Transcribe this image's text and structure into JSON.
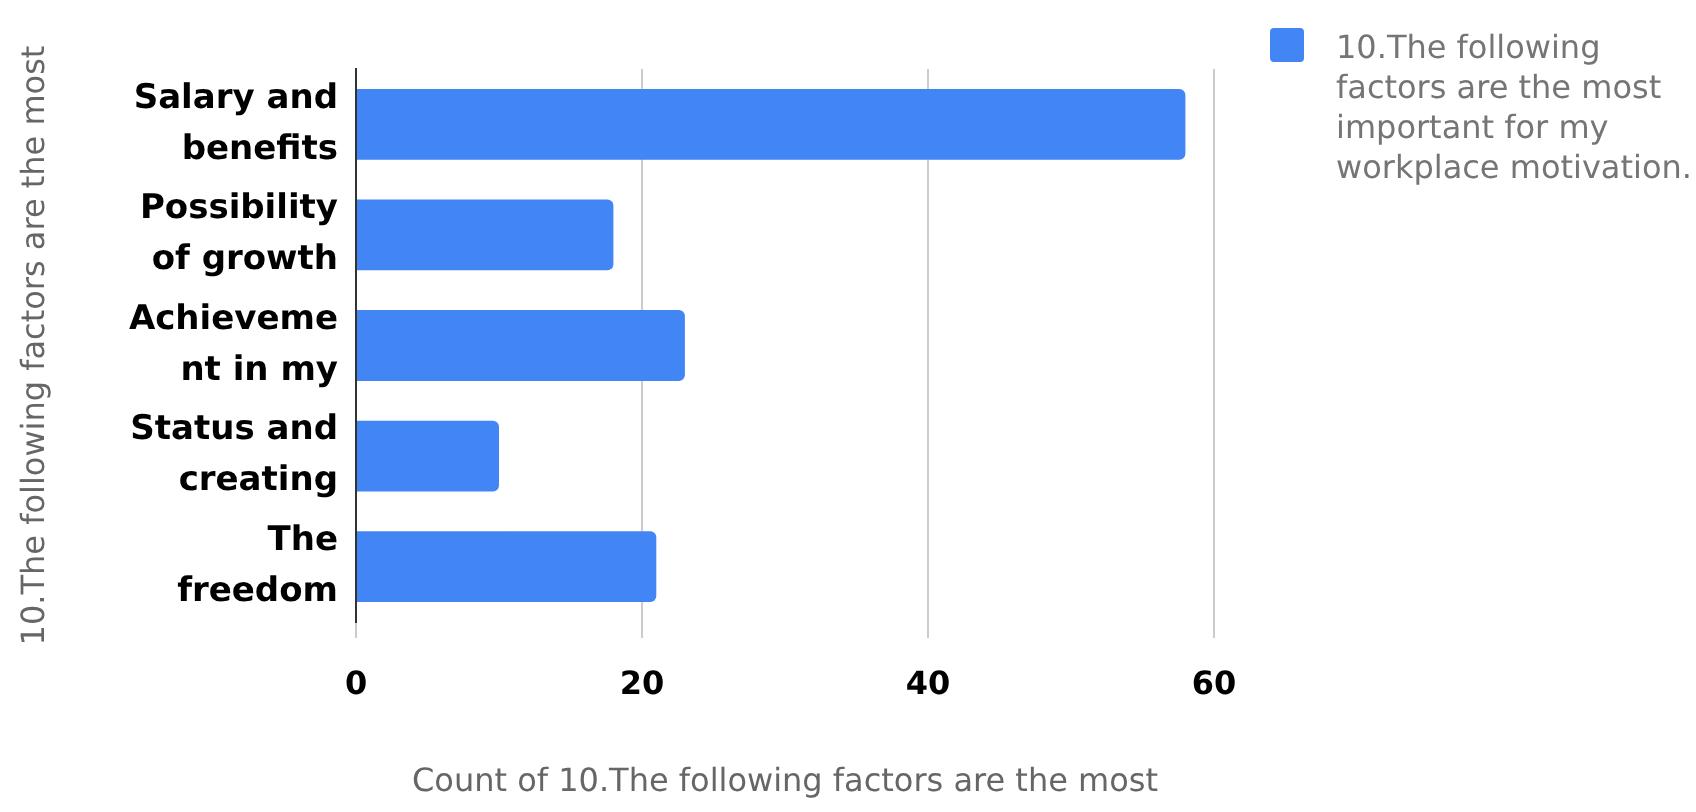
{
  "chart_data": {
    "type": "bar",
    "orientation": "horizontal",
    "categories": [
      "Salary and\nbenefits",
      "Possibility\nof growth",
      "Achieveme\nnt in my",
      "Status and\ncreating",
      "The\nfreedom"
    ],
    "series": [
      {
        "name": "10.The following factors are the most important for my workplace motivation.",
        "color": "#4285f4",
        "values": [
          58,
          18,
          23,
          10,
          21
        ]
      }
    ],
    "xlim": [
      0,
      60
    ],
    "xticks": [
      0,
      20,
      40,
      60
    ],
    "xlabel": "Count of 10.The following factors are the most",
    "ylabel": "10.The following factors are the most",
    "grid": "x",
    "legend": "right"
  }
}
